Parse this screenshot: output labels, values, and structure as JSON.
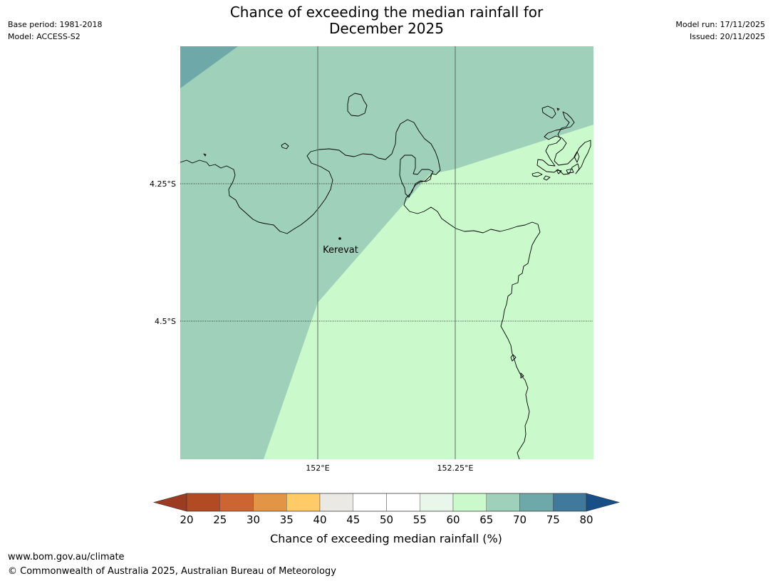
{
  "header": {
    "title_line1": "Chance of exceeding the median rainfall for",
    "title_line2": "December 2025",
    "base_period": "Base period: 1981-2018",
    "model": "Model: ACCESS-S2",
    "model_run": "Model run: 17/11/2025",
    "issued": "Issued: 20/11/2025"
  },
  "map": {
    "lat_labels": [
      "4.25°S",
      "4.5°S"
    ],
    "lon_labels": [
      "152°E",
      "152.25°E"
    ],
    "place": "Kerevat",
    "regions": [
      {
        "name": "70-75%",
        "color": "#6fa8a8"
      },
      {
        "name": "65-70%",
        "color": "#9ed0ba"
      },
      {
        "name": "60-65%",
        "color": "#caf9cb"
      }
    ]
  },
  "colorbar": {
    "label": "Chance of exceeding median rainfall (%)",
    "ticks": [
      "20",
      "25",
      "30",
      "35",
      "40",
      "45",
      "50",
      "55",
      "60",
      "65",
      "70",
      "75",
      "80"
    ],
    "under_color": "#9a3b22",
    "over_color": "#174f86",
    "colors": [
      "#b24a24",
      "#cd6532",
      "#e39546",
      "#fecb67",
      "#ebe9e4",
      "#ffffff",
      "#ffffff",
      "#e9f6ea",
      "#caf9cb",
      "#9ed0ba",
      "#6fa8a8",
      "#40799b"
    ]
  },
  "footer": {
    "url": "www.bom.gov.au/climate",
    "copyright": "© Commonwealth of Australia 2025, Australian Bureau of Meteorology"
  }
}
